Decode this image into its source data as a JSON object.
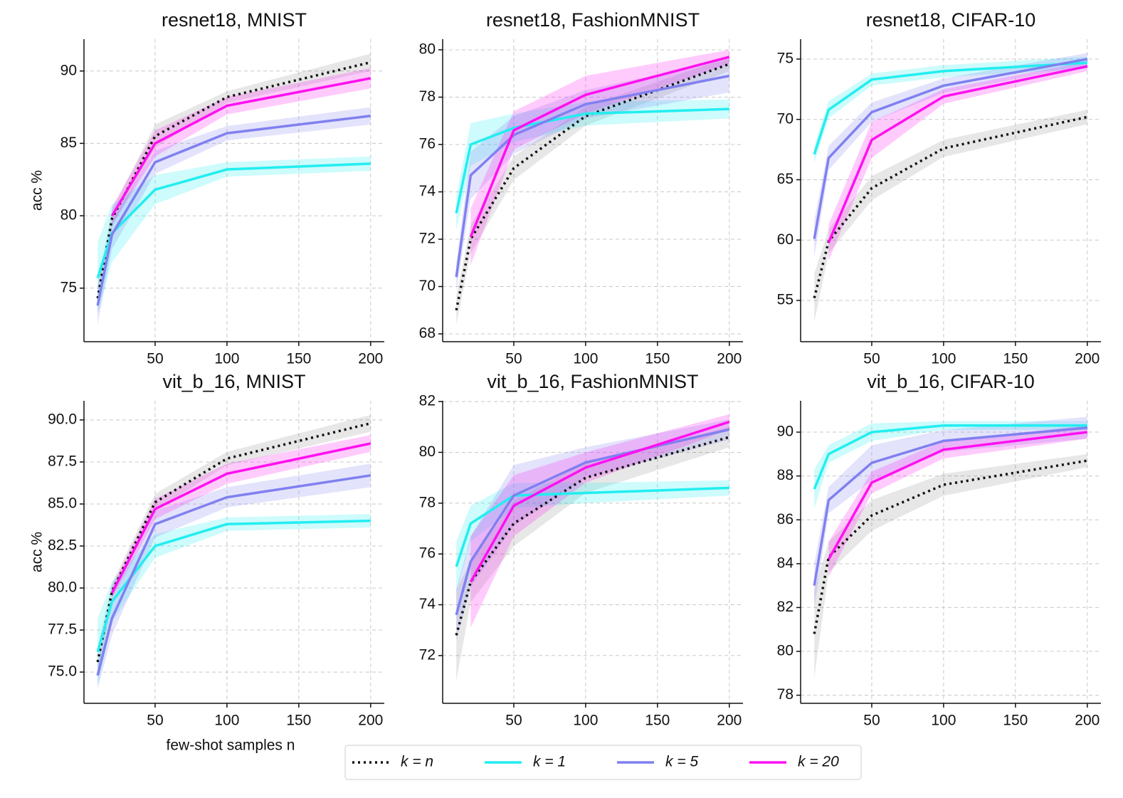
{
  "legend": [
    {
      "name": "k = n",
      "color": "#111111",
      "dash": "dotted"
    },
    {
      "name": "k = 1",
      "color": "#22eef0",
      "dash": "solid"
    },
    {
      "name": "k = 5",
      "color": "#8080f0",
      "dash": "solid"
    },
    {
      "name": "k = 20",
      "color": "#ff10f0",
      "dash": "solid"
    }
  ],
  "chart_data": [
    {
      "type": "line",
      "title": "resnet18, MNIST",
      "ylabel": "acc %",
      "grid": true,
      "x": [
        10,
        20,
        50,
        100,
        200
      ],
      "xlim": [
        0.5,
        209.5
      ],
      "xticks": [
        50,
        100,
        150,
        200
      ],
      "ylim": [
        71.3,
        92.2
      ],
      "yticks": [
        75,
        80,
        85,
        90
      ],
      "series": [
        {
          "values": [
            74.3,
            79.8,
            85.5,
            88.2,
            90.6
          ],
          "errors": [
            1.0,
            0.6,
            0.8,
            0.4,
            0.6
          ]
        },
        {
          "values": [
            75.7,
            78.8,
            81.8,
            83.2,
            83.6
          ],
          "errors": [
            2.5,
            2.0,
            1.0,
            0.5,
            0.5
          ]
        },
        {
          "values": [
            73.8,
            78.7,
            83.7,
            85.7,
            86.9
          ],
          "errors": [
            1.3,
            1.0,
            0.8,
            0.5,
            0.6
          ]
        },
        {
          "values": [
            null,
            80.0,
            85.0,
            87.6,
            89.5
          ],
          "errors": [
            null,
            0.6,
            0.9,
            0.6,
            0.7
          ]
        }
      ]
    },
    {
      "type": "line",
      "title": "resnet18, FashionMNIST",
      "grid": true,
      "x": [
        10,
        20,
        50,
        100,
        200
      ],
      "xlim": [
        0.5,
        209.5
      ],
      "xticks": [
        50,
        100,
        150,
        200
      ],
      "ylim": [
        67.67,
        80.45
      ],
      "yticks": [
        68,
        70,
        72,
        74,
        76,
        78,
        80
      ],
      "series": [
        {
          "values": [
            69.0,
            72.0,
            75.0,
            77.2,
            79.4
          ],
          "errors": [
            0.6,
            0.6,
            0.5,
            0.4,
            0.3
          ]
        },
        {
          "values": [
            73.1,
            76.0,
            76.7,
            77.3,
            77.5
          ],
          "errors": [
            0.7,
            0.9,
            0.6,
            0.5,
            0.4
          ]
        },
        {
          "values": [
            70.4,
            74.7,
            76.4,
            77.7,
            78.9
          ],
          "errors": [
            0.6,
            1.0,
            0.8,
            0.6,
            0.7
          ]
        },
        {
          "values": [
            null,
            72.1,
            76.6,
            78.1,
            79.7
          ],
          "errors": [
            null,
            1.2,
            0.8,
            0.8,
            0.3
          ]
        }
      ]
    },
    {
      "type": "line",
      "title": "resnet18, CIFAR-10",
      "grid": true,
      "x": [
        10,
        20,
        50,
        100,
        200
      ],
      "xlim": [
        0.5,
        209.5
      ],
      "xticks": [
        50,
        100,
        150,
        200
      ],
      "ylim": [
        51.58,
        76.65
      ],
      "yticks": [
        55,
        60,
        65,
        70,
        75
      ],
      "series": [
        {
          "values": [
            55.2,
            59.9,
            64.3,
            67.6,
            70.2
          ],
          "errors": [
            2.0,
            1.0,
            1.0,
            0.7,
            0.6
          ]
        },
        {
          "values": [
            67.1,
            70.8,
            73.3,
            74.0,
            74.7
          ],
          "errors": [
            0.7,
            0.7,
            0.5,
            0.5,
            0.5
          ]
        },
        {
          "values": [
            60.1,
            66.8,
            70.6,
            72.8,
            75.0
          ],
          "errors": [
            1.5,
            1.0,
            0.8,
            0.6,
            0.5
          ]
        },
        {
          "values": [
            null,
            59.8,
            68.3,
            71.9,
            74.4
          ],
          "errors": [
            null,
            1.5,
            1.5,
            0.6,
            0.4
          ]
        }
      ]
    },
    {
      "type": "line",
      "title": "vit_b_16, MNIST",
      "ylabel": "acc %",
      "xlabel": "few-shot samples n",
      "grid": true,
      "x": [
        10,
        20,
        50,
        100,
        200
      ],
      "xlim": [
        0.5,
        209.5
      ],
      "xticks": [
        50,
        100,
        150,
        200
      ],
      "ylim": [
        73.14,
        91.14
      ],
      "yticks": [
        {
          "value": 75,
          "label": "75.0"
        },
        {
          "value": 77.5,
          "label": "77.5"
        },
        {
          "value": 80,
          "label": "80.0"
        },
        {
          "value": 82.5,
          "label": "82.5"
        },
        {
          "value": 85,
          "label": "85.0"
        },
        {
          "value": 87.5,
          "label": "87.5"
        },
        {
          "value": 90,
          "label": "90.0"
        }
      ],
      "series": [
        {
          "values": [
            75.6,
            79.8,
            85.1,
            87.7,
            89.8
          ],
          "errors": [
            0.8,
            0.5,
            0.5,
            0.4,
            0.5
          ]
        },
        {
          "values": [
            76.2,
            79.2,
            82.5,
            83.8,
            84.0
          ],
          "errors": [
            2.0,
            1.2,
            0.7,
            0.4,
            0.4
          ]
        },
        {
          "values": [
            74.8,
            78.2,
            83.8,
            85.4,
            86.7
          ],
          "errors": [
            0.8,
            1.0,
            0.8,
            0.6,
            0.7
          ]
        },
        {
          "values": [
            null,
            79.7,
            84.7,
            86.8,
            88.6
          ],
          "errors": [
            null,
            0.4,
            0.6,
            0.6,
            0.5
          ]
        }
      ]
    },
    {
      "type": "line",
      "title": "vit_b_16, FashionMNIST",
      "grid": true,
      "x": [
        10,
        20,
        50,
        100,
        200
      ],
      "xlim": [
        0.5,
        209.5
      ],
      "xticks": [
        50,
        100,
        150,
        200
      ],
      "ylim": [
        70.12,
        82.03
      ],
      "yticks": [
        72,
        74,
        76,
        78,
        80,
        82
      ],
      "series": [
        {
          "values": [
            72.8,
            74.9,
            77.2,
            79.0,
            80.6
          ],
          "errors": [
            1.8,
            0.8,
            0.9,
            0.6,
            0.4
          ]
        },
        {
          "values": [
            75.5,
            77.2,
            78.3,
            78.4,
            78.6
          ],
          "errors": [
            1.0,
            0.7,
            0.5,
            0.4,
            0.3
          ]
        },
        {
          "values": [
            73.6,
            75.7,
            78.3,
            79.6,
            80.9
          ],
          "errors": [
            1.0,
            1.0,
            1.2,
            0.6,
            0.4
          ]
        },
        {
          "values": [
            null,
            74.9,
            77.9,
            79.4,
            81.2
          ],
          "errors": [
            null,
            1.8,
            1.2,
            0.6,
            0.3
          ]
        }
      ]
    },
    {
      "type": "line",
      "title": "vit_b_16, CIFAR-10",
      "grid": true,
      "x": [
        10,
        20,
        50,
        100,
        200
      ],
      "xlim": [
        0.5,
        209.5
      ],
      "xticks": [
        50,
        100,
        150,
        200
      ],
      "ylim": [
        77.63,
        91.43
      ],
      "yticks": [
        78,
        80,
        82,
        84,
        86,
        88,
        90
      ],
      "series": [
        {
          "values": [
            80.8,
            84.3,
            86.2,
            87.6,
            88.7
          ],
          "errors": [
            2.0,
            0.7,
            0.7,
            0.5,
            0.3
          ]
        },
        {
          "values": [
            87.4,
            89.0,
            90.0,
            90.3,
            90.3
          ],
          "errors": [
            0.9,
            0.4,
            0.4,
            0.2,
            0.2
          ]
        },
        {
          "values": [
            83.0,
            86.9,
            88.6,
            89.6,
            90.2
          ],
          "errors": [
            1.0,
            0.6,
            0.8,
            0.5,
            0.5
          ]
        },
        {
          "values": [
            null,
            84.2,
            87.7,
            89.2,
            90.0
          ],
          "errors": [
            null,
            0.8,
            0.5,
            0.4,
            0.3
          ]
        }
      ]
    }
  ]
}
